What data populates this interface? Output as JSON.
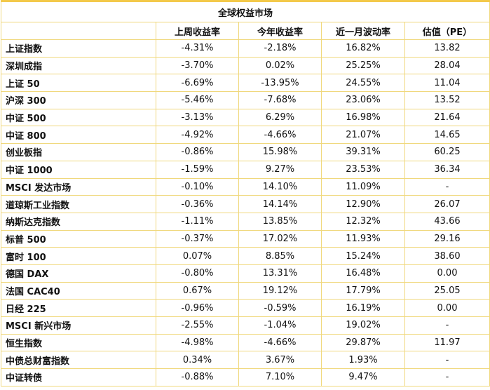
{
  "table": {
    "title": "全球权益市场",
    "header": [
      "",
      "上周收益率",
      "今年收益率",
      "近一月波动率",
      "估值（PE）"
    ],
    "rows": [
      [
        "上证指数",
        "-4.31%",
        "-2.18%",
        "16.82%",
        "13.82"
      ],
      [
        "深圳成指",
        "-3.70%",
        "0.02%",
        "25.25%",
        "28.04"
      ],
      [
        "上证 50",
        "-6.69%",
        "-13.95%",
        "24.55%",
        "11.04"
      ],
      [
        "沪深 300",
        "-5.46%",
        "-7.68%",
        "23.06%",
        "13.52"
      ],
      [
        "中证 500",
        "-3.13%",
        "6.29%",
        "16.98%",
        "21.64"
      ],
      [
        "中证 800",
        "-4.92%",
        "-4.66%",
        "21.07%",
        "14.65"
      ],
      [
        "创业板指",
        "-0.86%",
        "15.98%",
        "39.31%",
        "60.25"
      ],
      [
        "中证 1000",
        "-1.59%",
        "9.27%",
        "23.53%",
        "36.34"
      ],
      [
        "MSCI 发达市场",
        "-0.10%",
        "14.10%",
        "11.09%",
        "-"
      ],
      [
        "道琼斯工业指数",
        "-0.36%",
        "14.14%",
        "12.90%",
        "26.07"
      ],
      [
        "纳斯达克指数",
        "-1.11%",
        "13.85%",
        "12.32%",
        "43.66"
      ],
      [
        "标普 500",
        "-0.37%",
        "17.02%",
        "11.93%",
        "29.16"
      ],
      [
        "富时 100",
        "0.07%",
        "8.85%",
        "15.24%",
        "38.60"
      ],
      [
        "德国 DAX",
        "-0.80%",
        "13.31%",
        "16.48%",
        "0.00"
      ],
      [
        "法国 CAC40",
        "0.67%",
        "19.12%",
        "17.79%",
        "25.05"
      ],
      [
        "日经 225",
        "-0.96%",
        "-0.59%",
        "16.19%",
        "0.00"
      ],
      [
        "MSCI 新兴市场",
        "-2.55%",
        "-1.04%",
        "19.02%",
        "-"
      ],
      [
        "恒生指数",
        "-4.98%",
        "-4.66%",
        "29.87%",
        "11.97"
      ],
      [
        "中债总财富指数",
        "0.34%",
        "3.67%",
        "1.93%",
        "-"
      ],
      [
        "中证转债",
        "-0.88%",
        "7.10%",
        "9.47%",
        "-"
      ]
    ]
  }
}
